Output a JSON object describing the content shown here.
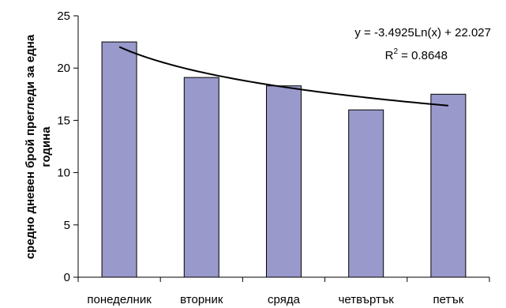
{
  "chart_data": {
    "type": "bar",
    "categories": [
      "понеделник",
      "вторник",
      "сряда",
      "четвъртък",
      "петък"
    ],
    "values": [
      22.5,
      19.1,
      18.3,
      16.0,
      17.5
    ],
    "ylabel_line1": "средно дневен брой прегледи за една",
    "ylabel_line2": "година",
    "ylim": [
      0,
      25
    ],
    "yticks": [
      0,
      5,
      10,
      15,
      20,
      25
    ],
    "grid": false,
    "bar_color": "#9999cc",
    "bar_edge_color": "#000000",
    "trendline": {
      "type": "logarithmic",
      "a": -3.4925,
      "b": 22.027,
      "color": "#000000",
      "equation": "y = -3.4925Ln(x) + 22.027",
      "r2_prefix": "R",
      "r2_sup": "2",
      "r2_value": " = 0.8648"
    }
  }
}
